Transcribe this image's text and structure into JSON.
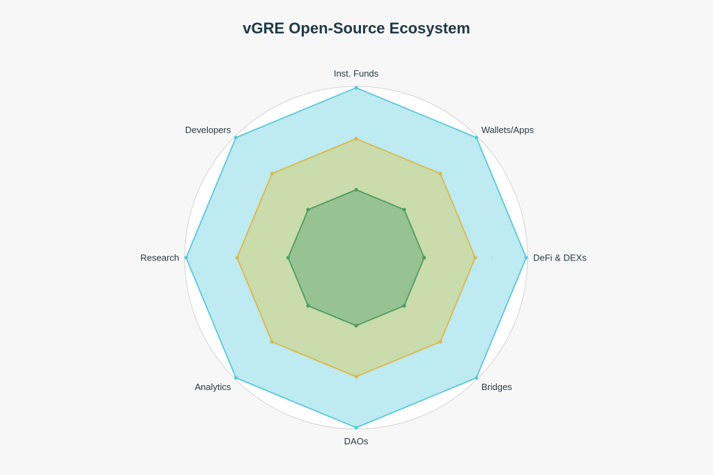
{
  "chart_data": {
    "type": "radar",
    "title": "vGRE Open-Source Ecosystem",
    "categories": [
      "Inst. Funds",
      "Wallets/Apps",
      "DeFi & DEXs",
      "Bridges",
      "DAOs",
      "Analytics",
      "Research",
      "Developers"
    ],
    "rmax": 1.0,
    "grid": true,
    "legend": "none",
    "series": [
      {
        "values": [
          1.0,
          1.0,
          1.0,
          1.0,
          1.0,
          1.0,
          1.0,
          1.0
        ],
        "color": "#5bc8da",
        "fill": "#b8e8f0"
      },
      {
        "values": [
          0.7,
          0.7,
          0.7,
          0.7,
          0.7,
          0.7,
          0.7,
          0.7
        ],
        "color": "#d9b84a",
        "fill": "#cbd9a6"
      },
      {
        "values": [
          0.4,
          0.4,
          0.4,
          0.4,
          0.4,
          0.4,
          0.4,
          0.4
        ],
        "color": "#4e9d60",
        "fill": "#93c08f"
      }
    ]
  }
}
